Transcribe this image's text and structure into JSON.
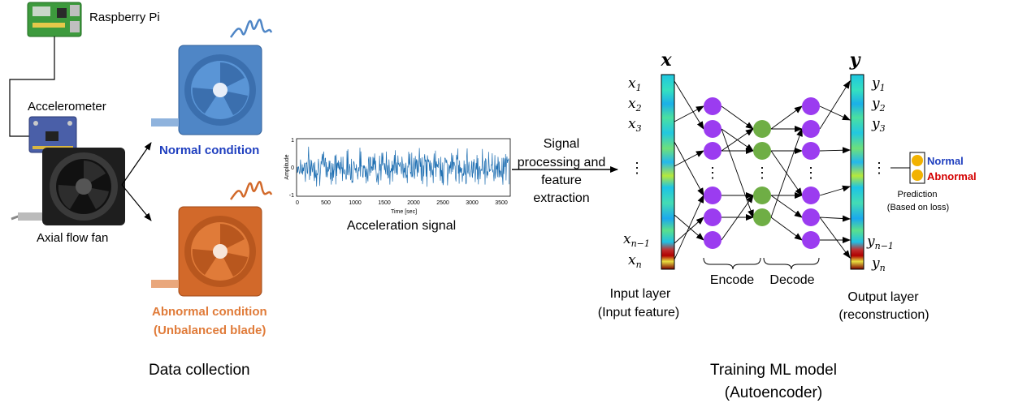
{
  "colors": {
    "normal": "#1f3fbf",
    "abnormal": "#e07b39",
    "abnormal_red": "#d40000",
    "fan_blue": "#4f86c6",
    "fan_orange": "#d2692a",
    "signal": "#1f6fb2",
    "node_purple": "#9b3cf0",
    "node_green": "#6fae45",
    "node_yellow": "#f2b200"
  },
  "collection": {
    "rpi_label": "Raspberry Pi",
    "accel_label": "Accelerometer",
    "fan_label": "Axial flow fan",
    "normal_label": "Normal condition",
    "abnormal_label_1": "Abnormal condition",
    "abnormal_label_2": "(Unbalanced blade)",
    "section_title": "Data collection"
  },
  "signal_plot": {
    "ylabel": "Amplitude",
    "xlabel": "Time [sec]",
    "y_ticks": [
      "1",
      "0",
      "-1"
    ],
    "x_ticks": [
      "0",
      "500",
      "1000",
      "1500",
      "2000",
      "2500",
      "3000",
      "3500"
    ],
    "caption": "Acceleration signal"
  },
  "processing": {
    "line1": "Signal",
    "line2": "processing and",
    "line3": "feature",
    "line4": "extraction"
  },
  "autoencoder": {
    "x_header": "x",
    "y_header": "y",
    "x_labels": [
      "x",
      "x",
      "x",
      "x"
    ],
    "x_subs": [
      "1",
      "2",
      "3",
      "n−1",
      "n"
    ],
    "y_subs": [
      "1",
      "2",
      "3",
      "n−1",
      "n"
    ],
    "vdots": "⋮",
    "encode_label": "Encode",
    "decode_label": "Decode",
    "input_layer_1": "Input layer",
    "input_layer_2": "(Input feature)",
    "output_layer_1": "Output layer",
    "output_layer_2": "(reconstruction)",
    "pred_normal": "Normal",
    "pred_abnormal": "Abnormal",
    "pred_caption_1": "Prediction",
    "pred_caption_2": "(Based on loss)",
    "section_title_1": "Training ML model",
    "section_title_2": "(Autoencoder)"
  }
}
